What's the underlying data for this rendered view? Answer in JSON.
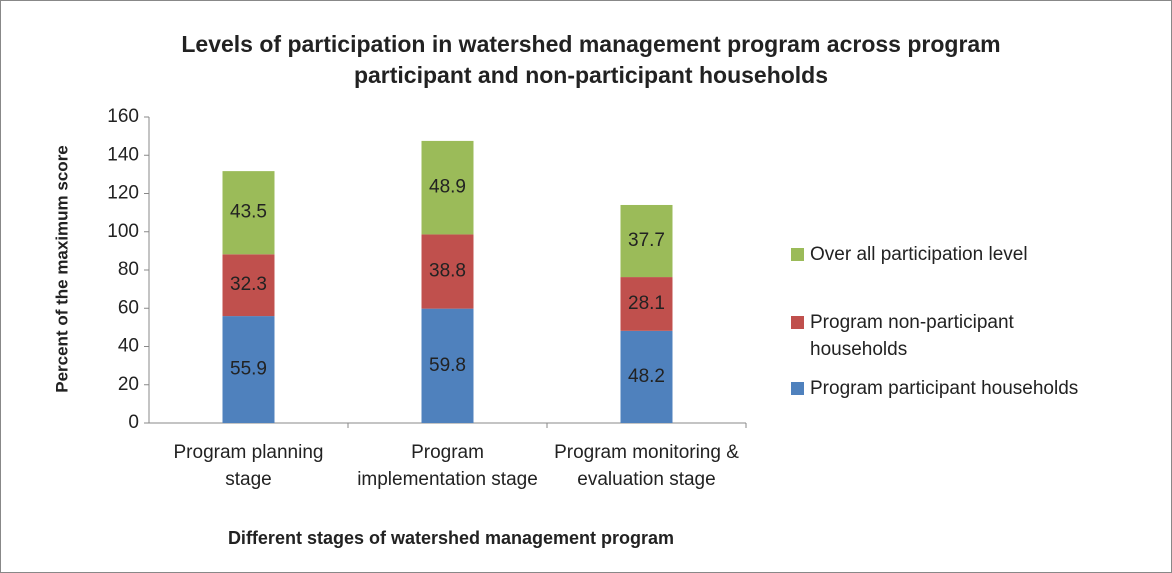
{
  "chart_data": {
    "type": "stacked_bar",
    "title": "Levels of participation in watershed management program across program participant and non-participant households",
    "x_label": "Different stages of watershed management program",
    "y_label": "Percent of the maximum score",
    "categories": [
      "Program planning stage",
      "Program implementation stage",
      "Program monitoring & evaluation stage"
    ],
    "series": [
      {
        "name": "Program participant households",
        "color": "#4f81bd",
        "values": [
          55.9,
          59.8,
          48.2
        ]
      },
      {
        "name": "Program non-participant households",
        "color": "#c0504d",
        "values": [
          32.3,
          38.8,
          28.1
        ]
      },
      {
        "name": "Over all participation level",
        "color": "#9bbb59",
        "values": [
          43.5,
          48.9,
          37.7
        ]
      }
    ],
    "ylim": [
      0,
      160
    ],
    "yticks": [
      0,
      20,
      40,
      60,
      80,
      100,
      120,
      140,
      160
    ],
    "grid": false,
    "legend": "right"
  }
}
